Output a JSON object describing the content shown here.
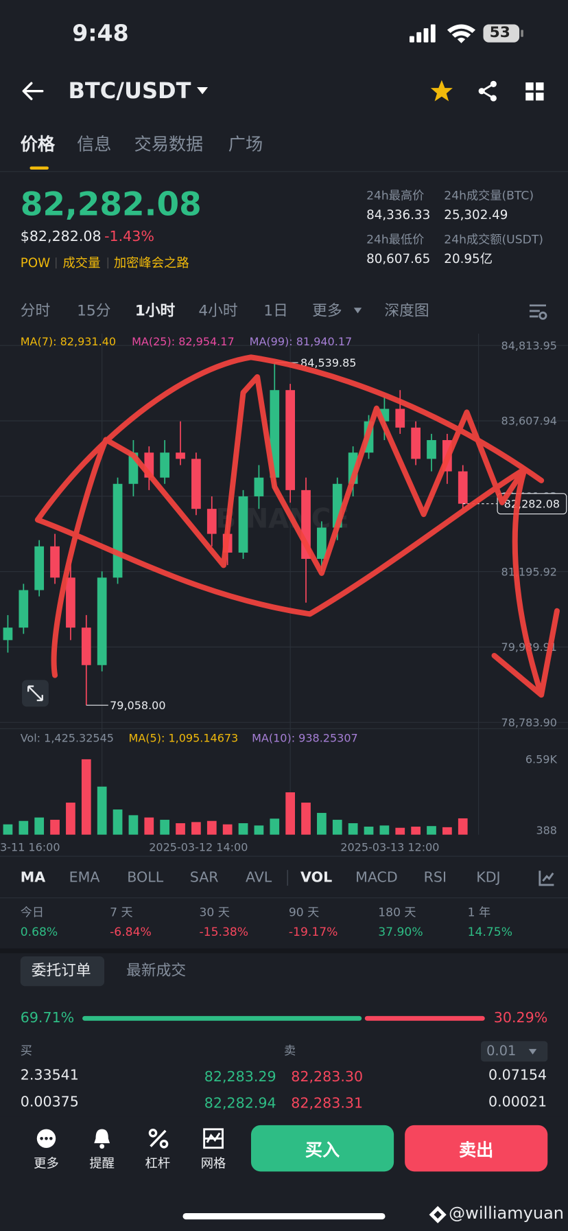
{
  "status": {
    "time": "9:48",
    "battery": "53"
  },
  "header": {
    "pair": "BTC/USDT"
  },
  "tabs": [
    "价格",
    "信息",
    "交易数据",
    "广场"
  ],
  "ticker": {
    "last": "82,282.08",
    "usd": "$82,282.08",
    "change": "-1.43%",
    "tags": [
      "POW",
      "成交量",
      "加密峰会之路"
    ],
    "stats": [
      {
        "label": "24h最高价",
        "value": "84,336.33"
      },
      {
        "label": "24h成交量(BTC)",
        "value": "25,302.49"
      },
      {
        "label": "24h最低价",
        "value": "80,607.65"
      },
      {
        "label": "24h成交额(USDT)",
        "value": "20.95亿"
      }
    ]
  },
  "intervals": [
    "分时",
    "15分",
    "1小时",
    "4小时",
    "1日",
    "更多",
    "深度图"
  ],
  "chart_data": {
    "type": "candlestick",
    "ma_legend": [
      {
        "name": "MA(7): 82,931.40",
        "color": "#f0b90b"
      },
      {
        "name": "MA(25): 82,954.17",
        "color": "#e84aa0"
      },
      {
        "name": "MA(99): 81,940.17",
        "color": "#a67fd6"
      }
    ],
    "up_color": "#2ebd85",
    "down_color": "#f6465d",
    "ylim": [
      78783.9,
      84813.95
    ],
    "yticks": [
      {
        "value": 84813.95,
        "label": "84,813.95"
      },
      {
        "value": 83607.94,
        "label": "83,607.94"
      },
      {
        "value": 82401.93,
        "label": "82,401.93"
      },
      {
        "value": 81195.92,
        "label": "81,195.92"
      },
      {
        "value": 79989.91,
        "label": "79,989.91"
      },
      {
        "value": 78783.9,
        "label": "78,783.90"
      }
    ],
    "candles": [
      [
        80100,
        80500,
        79900,
        80300
      ],
      [
        80300,
        81000,
        80200,
        80900
      ],
      [
        80900,
        81700,
        80800,
        81600
      ],
      [
        81600,
        81800,
        81000,
        81100
      ],
      [
        81100,
        81400,
        80100,
        80300
      ],
      [
        80300,
        80500,
        79058,
        79700
      ],
      [
        79700,
        81200,
        79600,
        81100
      ],
      [
        81100,
        82700,
        81000,
        82600
      ],
      [
        82600,
        83300,
        82400,
        83100
      ],
      [
        83100,
        83200,
        82500,
        82700
      ],
      [
        82700,
        83300,
        82600,
        83100
      ],
      [
        83100,
        83600,
        82900,
        83000
      ],
      [
        83000,
        83100,
        82100,
        82200
      ],
      [
        82200,
        82400,
        81600,
        81800
      ],
      [
        81800,
        82100,
        81300,
        81500
      ],
      [
        81500,
        82500,
        81400,
        82400
      ],
      [
        82400,
        82900,
        82200,
        82700
      ],
      [
        82700,
        84539.85,
        82500,
        84100
      ],
      [
        84100,
        84200,
        82300,
        82500
      ],
      [
        82500,
        82700,
        80700,
        81400
      ],
      [
        81400,
        82000,
        81200,
        81900
      ],
      [
        81900,
        82700,
        81700,
        82600
      ],
      [
        82600,
        83200,
        82400,
        83100
      ],
      [
        83100,
        83700,
        83000,
        83600
      ],
      [
        83600,
        84000,
        83300,
        83800
      ],
      [
        83800,
        84100,
        83400,
        83500
      ],
      [
        83500,
        83600,
        82900,
        83000
      ],
      [
        83000,
        83400,
        82800,
        83300
      ],
      [
        83300,
        83400,
        82600,
        82800
      ],
      [
        82800,
        82900,
        82200,
        82282.08
      ]
    ],
    "high_label": {
      "value": 84539.85,
      "label": "84,539.85"
    },
    "low_label": {
      "value": 79058,
      "label": "79,058.00"
    },
    "last_label": {
      "value": 82282.08,
      "label": "82,282.08"
    },
    "watermark": "BINANCE",
    "x_labels": [
      "3-11 16:00",
      "2025-03-12 14:00",
      "2025-03-13 12:00"
    ],
    "volume": {
      "legend": [
        {
          "name": "Vol: 1,425.32545",
          "color": "#848e9c"
        },
        {
          "name": "MA(5): 1,095.14673",
          "color": "#f0b90b"
        },
        {
          "name": "MA(10): 938.25307",
          "color": "#a67fd6"
        }
      ],
      "ylim": [
        0,
        6590
      ],
      "yticks": [
        {
          "value": 6590,
          "label": "6.59K"
        },
        388
      ],
      "values": [
        900,
        1200,
        1500,
        1300,
        2800,
        6590,
        4200,
        2200,
        1700,
        1500,
        1300,
        1000,
        1100,
        1200,
        900,
        1000,
        800,
        1400,
        3700,
        2800,
        1900,
        1300,
        1000,
        700,
        800,
        600,
        700,
        750,
        650,
        1425.32545
      ]
    }
  },
  "indicators": [
    "MA",
    "EMA",
    "BOLL",
    "SAR",
    "AVL",
    "VOL",
    "MACD",
    "RSI",
    "KDJ"
  ],
  "performance": [
    {
      "label": "今日",
      "value": "0.68%"
    },
    {
      "label": "7 天",
      "value": "-6.84%"
    },
    {
      "label": "30 天",
      "value": "-15.38%"
    },
    {
      "label": "90 天",
      "value": "-19.17%"
    },
    {
      "label": "180 天",
      "value": "37.90%"
    },
    {
      "label": "1 年",
      "value": "14.75%"
    }
  ],
  "order_tabs": [
    "委托订单",
    "最新成交"
  ],
  "depth_ratio": {
    "values": [
      69.71,
      30.29
    ],
    "value_labels": [
      "69.71%",
      "30.29%"
    ]
  },
  "book": {
    "buy_header": "买",
    "sell_header": "卖",
    "precision": "0.01",
    "rows": [
      [
        "2.33541",
        "82,283.29",
        "82,283.30",
        "0.07154"
      ],
      [
        "0.00375",
        "82,282.94",
        "82,283.31",
        "0.00021"
      ]
    ]
  },
  "nav": [
    "更多",
    "提醒",
    "杠杆",
    "网格"
  ],
  "buttons": {
    "buy": "买入",
    "sell": "卖出"
  },
  "watermark": "@williamyuan"
}
